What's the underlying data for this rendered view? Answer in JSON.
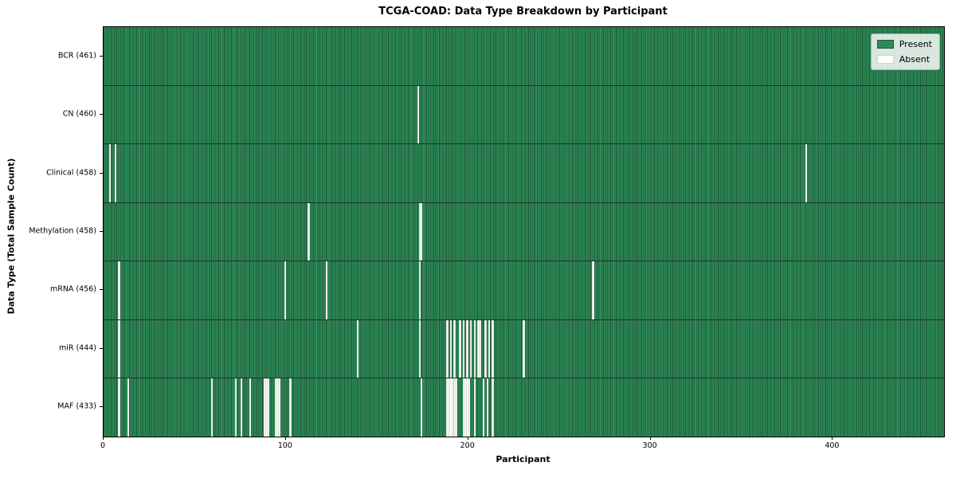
{
  "chart": {
    "title": "TCGA-COAD: Data Type Breakdown by Participant",
    "xlabel": "Participant",
    "ylabel": "Data Type (Total Sample Count)"
  },
  "legend": {
    "present_label": "Present",
    "absent_label": "Absent"
  },
  "chart_data": {
    "type": "heatmap",
    "title": "TCGA-COAD: Data Type Breakdown by Participant",
    "xlabel": "Participant",
    "ylabel": "Data Type (Total Sample Count)",
    "x_ticks": [
      0,
      100,
      200,
      300,
      400
    ],
    "x_range": [
      0,
      461
    ],
    "n_participants": 461,
    "grid": false,
    "legend_position": "upper right",
    "legend_entries": [
      {
        "label": "Present",
        "color": "#2e8b57"
      },
      {
        "label": "Absent",
        "color": "#ffffff"
      }
    ],
    "colors": {
      "present": "#2e8b57",
      "cell_edge": "#1c5737",
      "row_divider": "#1e3226",
      "absent": "#ffffff"
    },
    "rows": [
      {
        "name": "bcr",
        "label": "BCR (461)",
        "present_count": 461,
        "absent_participants": []
      },
      {
        "name": "cn",
        "label": "CN (460)",
        "present_count": 460,
        "absent_participants": [
          172
        ]
      },
      {
        "name": "clinical",
        "label": "Clinical (458)",
        "present_count": 458,
        "absent_participants": [
          3,
          6,
          385
        ]
      },
      {
        "name": "methylation",
        "label": "Methylation (458)",
        "present_count": 458,
        "absent_participants": [
          112,
          173,
          174
        ]
      },
      {
        "name": "mrna",
        "label": "mRNA (456)",
        "present_count": 456,
        "absent_participants": [
          8,
          99,
          122,
          173,
          268
        ]
      },
      {
        "name": "mir",
        "label": "miR (444)",
        "present_count": 444,
        "absent_participants": [
          8,
          139,
          173,
          188,
          190,
          192,
          195,
          197,
          199,
          201,
          203,
          205,
          206,
          209,
          211,
          213,
          230
        ]
      },
      {
        "name": "maf",
        "label": "MAF (433)",
        "present_count": 433,
        "absent_participants": [
          8,
          13,
          59,
          72,
          75,
          80,
          88,
          89,
          90,
          94,
          95,
          96,
          102,
          174,
          188,
          189,
          190,
          191,
          192,
          193,
          197,
          198,
          199,
          200,
          203,
          208,
          210,
          213
        ]
      }
    ]
  }
}
